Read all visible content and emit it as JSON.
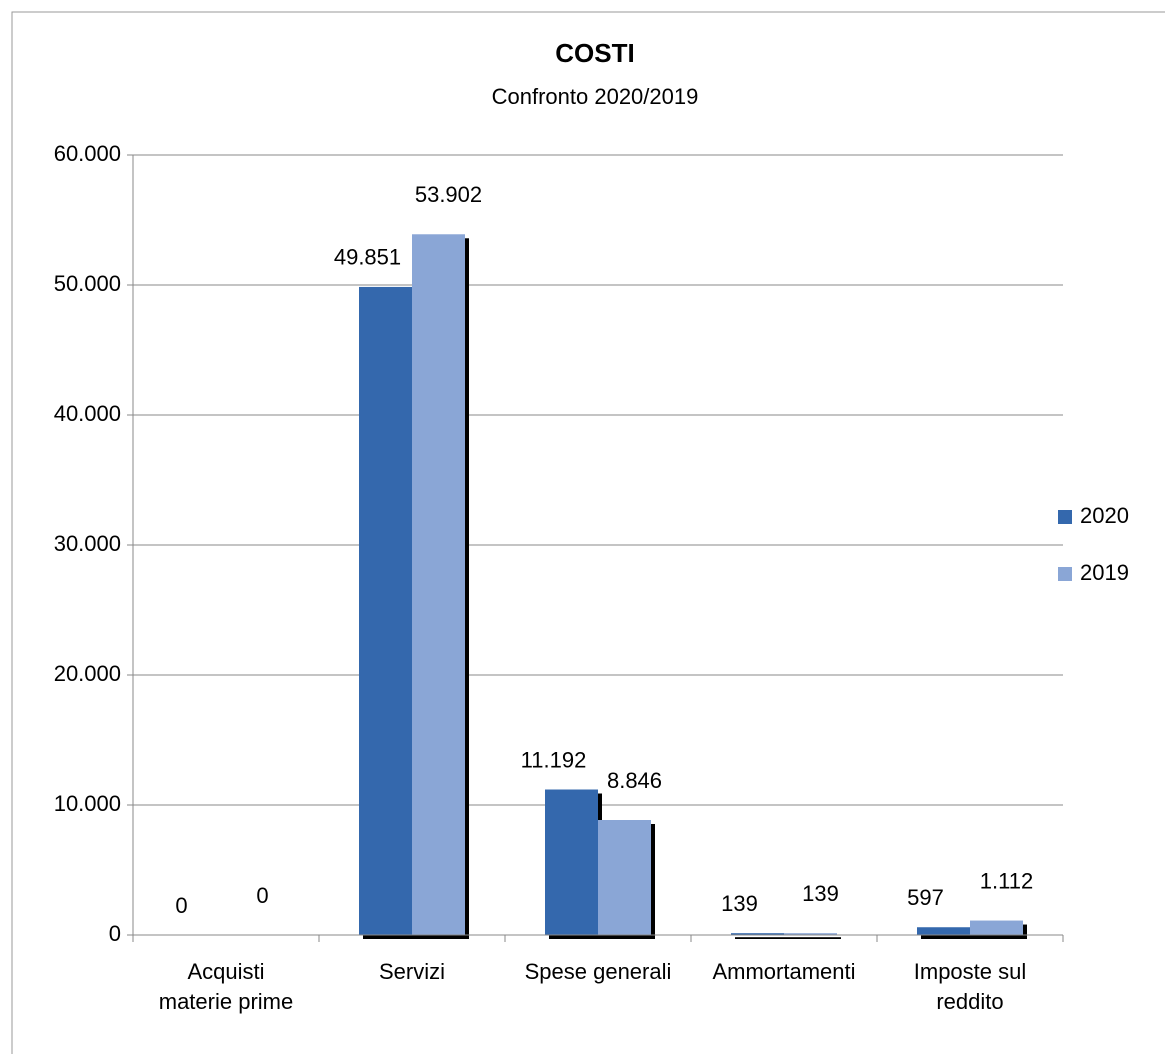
{
  "chart_data": {
    "type": "bar",
    "title": "COSTI",
    "subtitle": "Confronto 2020/2019",
    "categories": [
      "Acquisti materie prime",
      "Servizi",
      "Spese generali",
      "Ammortamenti",
      "Imposte sul reddito"
    ],
    "series": [
      {
        "name": "2020",
        "color": "#3468ad",
        "values": [
          0,
          49851,
          11192,
          139,
          597
        ],
        "value_labels": [
          "0",
          "49.851",
          "11.192",
          "139",
          "597"
        ]
      },
      {
        "name": "2019",
        "color": "#8aa6d6",
        "values": [
          0,
          53902,
          8846,
          139,
          1112
        ],
        "value_labels": [
          "0",
          "53.902",
          "8.846",
          "139",
          "1.112"
        ]
      }
    ],
    "ylim": [
      0,
      60000
    ],
    "yticks": [
      {
        "value": 0,
        "label": "0"
      },
      {
        "value": 10000,
        "label": "10.000"
      },
      {
        "value": 20000,
        "label": "20.000"
      },
      {
        "value": 30000,
        "label": "30.000"
      },
      {
        "value": 40000,
        "label": "40.000"
      },
      {
        "value": 50000,
        "label": "50.000"
      },
      {
        "value": 60000,
        "label": "60.000"
      }
    ],
    "grid": true,
    "legend": "right"
  }
}
